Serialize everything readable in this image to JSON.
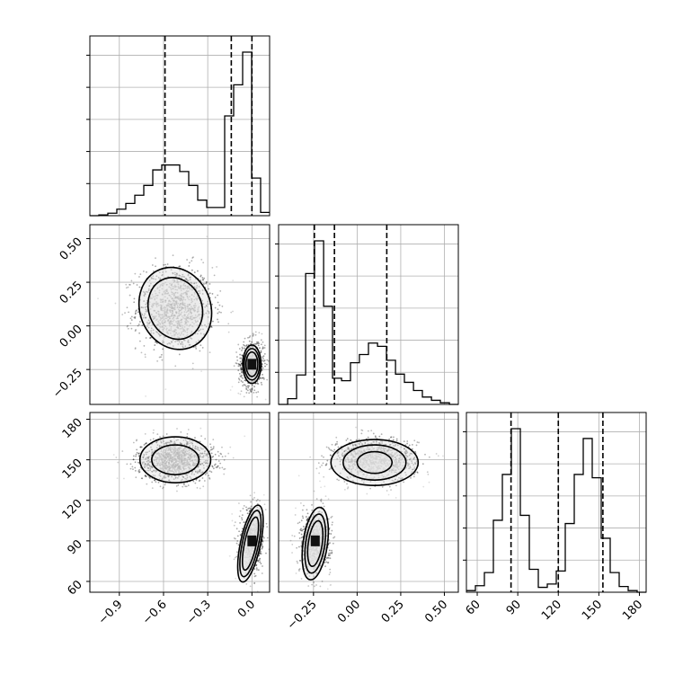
{
  "chart_data": {
    "type": "corner",
    "grid": true,
    "params": [
      {
        "range": [
          -1.1,
          0.12
        ],
        "ticks": [
          -0.9,
          -0.6,
          -0.3,
          0.0
        ],
        "tick_labels": [
          "−0.9",
          "−0.6",
          "−0.3",
          "0.0"
        ],
        "quantiles": [
          -0.59,
          -0.14,
          0.0
        ],
        "hist": {
          "edges": [
            -1.1,
            -1.039,
            -0.978,
            -0.917,
            -0.856,
            -0.795,
            -0.734,
            -0.673,
            -0.612,
            -0.551,
            -0.49,
            -0.429,
            -0.368,
            -0.307,
            -0.246,
            -0.185,
            -0.124,
            -0.063,
            -0.002,
            0.059,
            0.12
          ],
          "counts": [
            0,
            0.005,
            0.015,
            0.04,
            0.075,
            0.125,
            0.185,
            0.28,
            0.31,
            0.31,
            0.27,
            0.185,
            0.095,
            0.05,
            0.05,
            0.61,
            0.8,
            1.0,
            0.23,
            0.02
          ]
        }
      },
      {
        "range": [
          -0.45,
          0.58
        ],
        "ticks": [
          -0.25,
          0.0,
          0.25,
          0.5
        ],
        "tick_labels": [
          "−0.25",
          "0.00",
          "0.25",
          "0.50"
        ],
        "quantiles": [
          -0.245,
          -0.13,
          0.17
        ],
        "hist": {
          "edges": [
            -0.45,
            -0.398,
            -0.347,
            -0.295,
            -0.244,
            -0.192,
            -0.141,
            -0.089,
            -0.038,
            0.013,
            0.065,
            0.117,
            0.168,
            0.22,
            0.271,
            0.323,
            0.374,
            0.426,
            0.477,
            0.529,
            0.58
          ],
          "counts": [
            0,
            0.035,
            0.18,
            0.8,
            1.0,
            0.6,
            0.16,
            0.145,
            0.255,
            0.305,
            0.375,
            0.355,
            0.27,
            0.185,
            0.135,
            0.085,
            0.045,
            0.025,
            0.01,
            0
          ]
        }
      },
      {
        "range": [
          52,
          185
        ],
        "ticks": [
          60,
          90,
          120,
          150,
          180
        ],
        "tick_labels": [
          "60",
          "90",
          "120",
          "150",
          "180"
        ],
        "quantiles": [
          85,
          120,
          153
        ],
        "hist": {
          "edges": [
            52,
            58.65,
            65.3,
            71.95,
            78.6,
            85.25,
            91.9,
            98.55,
            105.2,
            111.85,
            118.5,
            125.15,
            131.8,
            138.45,
            145.1,
            151.75,
            158.4,
            165.05,
            171.7,
            178.35,
            185
          ],
          "counts": [
            0.01,
            0.04,
            0.12,
            0.44,
            0.72,
            1.0,
            0.47,
            0.14,
            0.03,
            0.05,
            0.13,
            0.42,
            0.72,
            0.94,
            0.7,
            0.33,
            0.12,
            0.035,
            0.01,
            0
          ]
        }
      }
    ],
    "pairs": [
      {
        "row": 1,
        "col": 0,
        "modes": [
          {
            "cx": -0.52,
            "cy": 0.1,
            "sx": 0.13,
            "sy": 0.12,
            "n": 1100
          },
          {
            "cx": 0.0,
            "cy": -0.22,
            "sx": 0.045,
            "sy": 0.07,
            "n": 520
          }
        ],
        "contours": [
          {
            "cx": -0.52,
            "cy": 0.1,
            "rx": 0.18,
            "ry": 0.18,
            "rot": 22
          },
          {
            "cx": -0.52,
            "cy": 0.1,
            "rx": 0.24,
            "ry": 0.24,
            "rot": 22
          },
          {
            "cx": 0.0,
            "cy": -0.22,
            "rx": 0.04,
            "ry": 0.07,
            "rot": 0
          },
          {
            "cx": 0.0,
            "cy": -0.22,
            "rx": 0.052,
            "ry": 0.09,
            "rot": 0
          },
          {
            "cx": 0.0,
            "cy": -0.22,
            "rx": 0.062,
            "ry": 0.11,
            "rot": 0
          }
        ],
        "peak": {
          "x": 0.0,
          "y": -0.22
        }
      },
      {
        "row": 2,
        "col": 0,
        "modes": [
          {
            "cx": -0.52,
            "cy": 150,
            "sx": 0.13,
            "sy": 8,
            "n": 1100
          },
          {
            "cx": 0.0,
            "cy": 90,
            "sx": 0.045,
            "sy": 12,
            "n": 520
          }
        ],
        "contours": [
          {
            "cx": -0.52,
            "cy": 150,
            "rx": 0.16,
            "ry": 11,
            "rot": 0
          },
          {
            "cx": -0.52,
            "cy": 150,
            "rx": 0.24,
            "ry": 17,
            "rot": 0
          },
          {
            "cx": -0.01,
            "cy": 88,
            "rx": 0.04,
            "ry": 20,
            "rot": -12
          },
          {
            "cx": -0.01,
            "cy": 88,
            "rx": 0.055,
            "ry": 25,
            "rot": -12
          },
          {
            "cx": -0.01,
            "cy": 88,
            "rx": 0.068,
            "ry": 29,
            "rot": -12
          }
        ],
        "peak": {
          "x": 0.0,
          "y": 90
        }
      },
      {
        "row": 2,
        "col": 1,
        "modes": [
          {
            "cx": 0.1,
            "cy": 150,
            "sx": 0.12,
            "sy": 8,
            "n": 1000
          },
          {
            "cx": -0.24,
            "cy": 90,
            "sx": 0.045,
            "sy": 12,
            "n": 620
          }
        ],
        "contours": [
          {
            "cx": 0.1,
            "cy": 148,
            "rx": 0.1,
            "ry": 8,
            "rot": 0
          },
          {
            "cx": 0.1,
            "cy": 148,
            "rx": 0.18,
            "ry": 13,
            "rot": 0
          },
          {
            "cx": 0.1,
            "cy": 148,
            "rx": 0.25,
            "ry": 17,
            "rot": 0
          },
          {
            "cx": -0.24,
            "cy": 88,
            "rx": 0.04,
            "ry": 17,
            "rot": -8
          },
          {
            "cx": -0.24,
            "cy": 88,
            "rx": 0.055,
            "ry": 22,
            "rot": -8
          },
          {
            "cx": -0.24,
            "cy": 88,
            "rx": 0.07,
            "ry": 27,
            "rot": -8
          }
        ],
        "peak": {
          "x": -0.24,
          "y": 90
        }
      }
    ]
  }
}
